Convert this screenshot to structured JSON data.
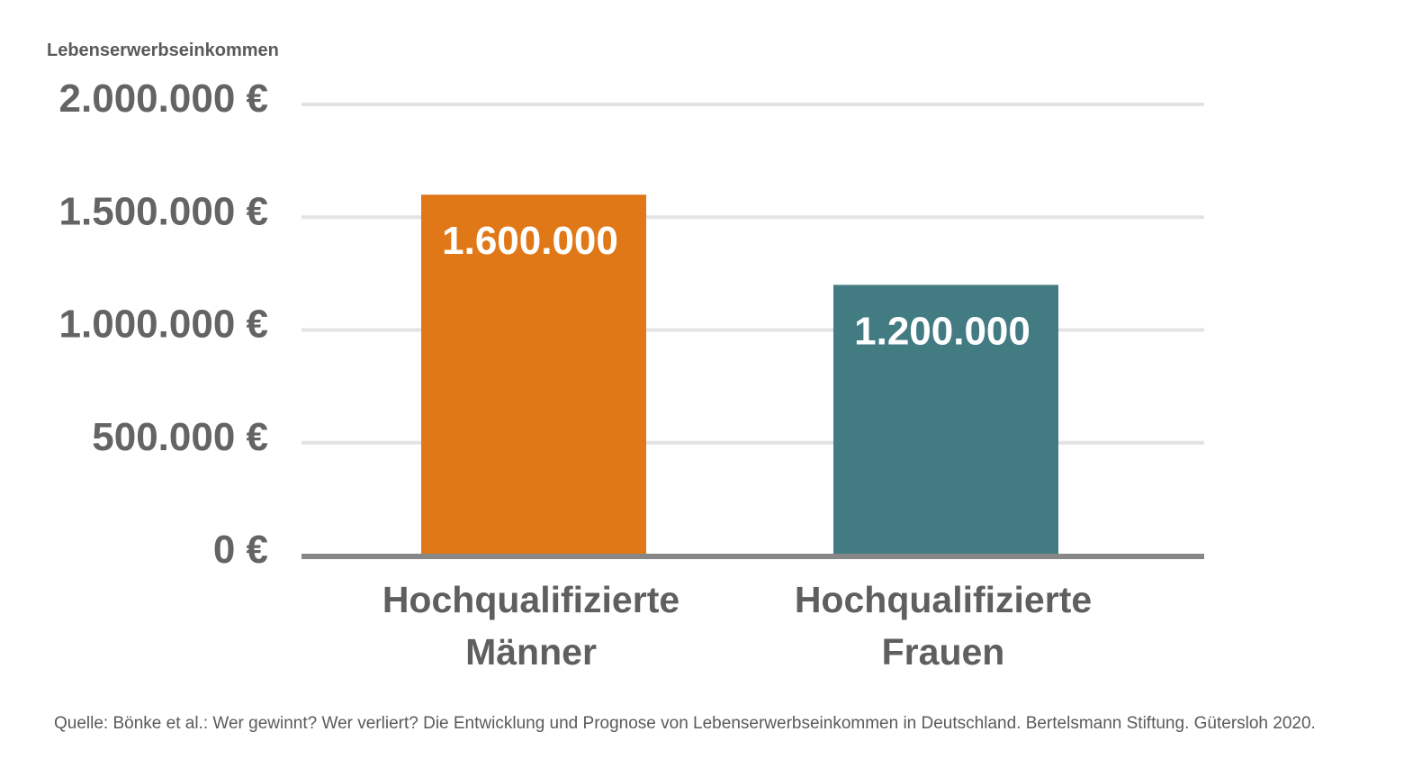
{
  "chart_data": {
    "type": "bar",
    "ylabel": "Lebenserwerbseinkommen",
    "ylim": [
      0,
      2000000
    ],
    "grid": true,
    "y_ticks": [
      {
        "value": 0,
        "label": "0 €"
      },
      {
        "value": 500000,
        "label": "500.000 €"
      },
      {
        "value": 1000000,
        "label": "1.000.000 €"
      },
      {
        "value": 1500000,
        "label": "1.500.000 €"
      },
      {
        "value": 2000000,
        "label": "2.000.000 €"
      }
    ],
    "categories": [
      {
        "lines": [
          "Hochqualifizierte",
          "Männer"
        ]
      },
      {
        "lines": [
          "Hochqualifizierte",
          "Frauen"
        ]
      }
    ],
    "values": [
      1600000,
      1200000
    ],
    "data_labels": [
      "1.600.000",
      "1.200.000"
    ],
    "colors": [
      "#e07818",
      "#437b83"
    ]
  },
  "source": "Quelle: Bönke et al.: Wer gewinnt? Wer verliert? Die Entwicklung und Prognose von Lebenserwerbseinkommen in Deutschland. Bertelsmann Stiftung. Gütersloh 2020."
}
